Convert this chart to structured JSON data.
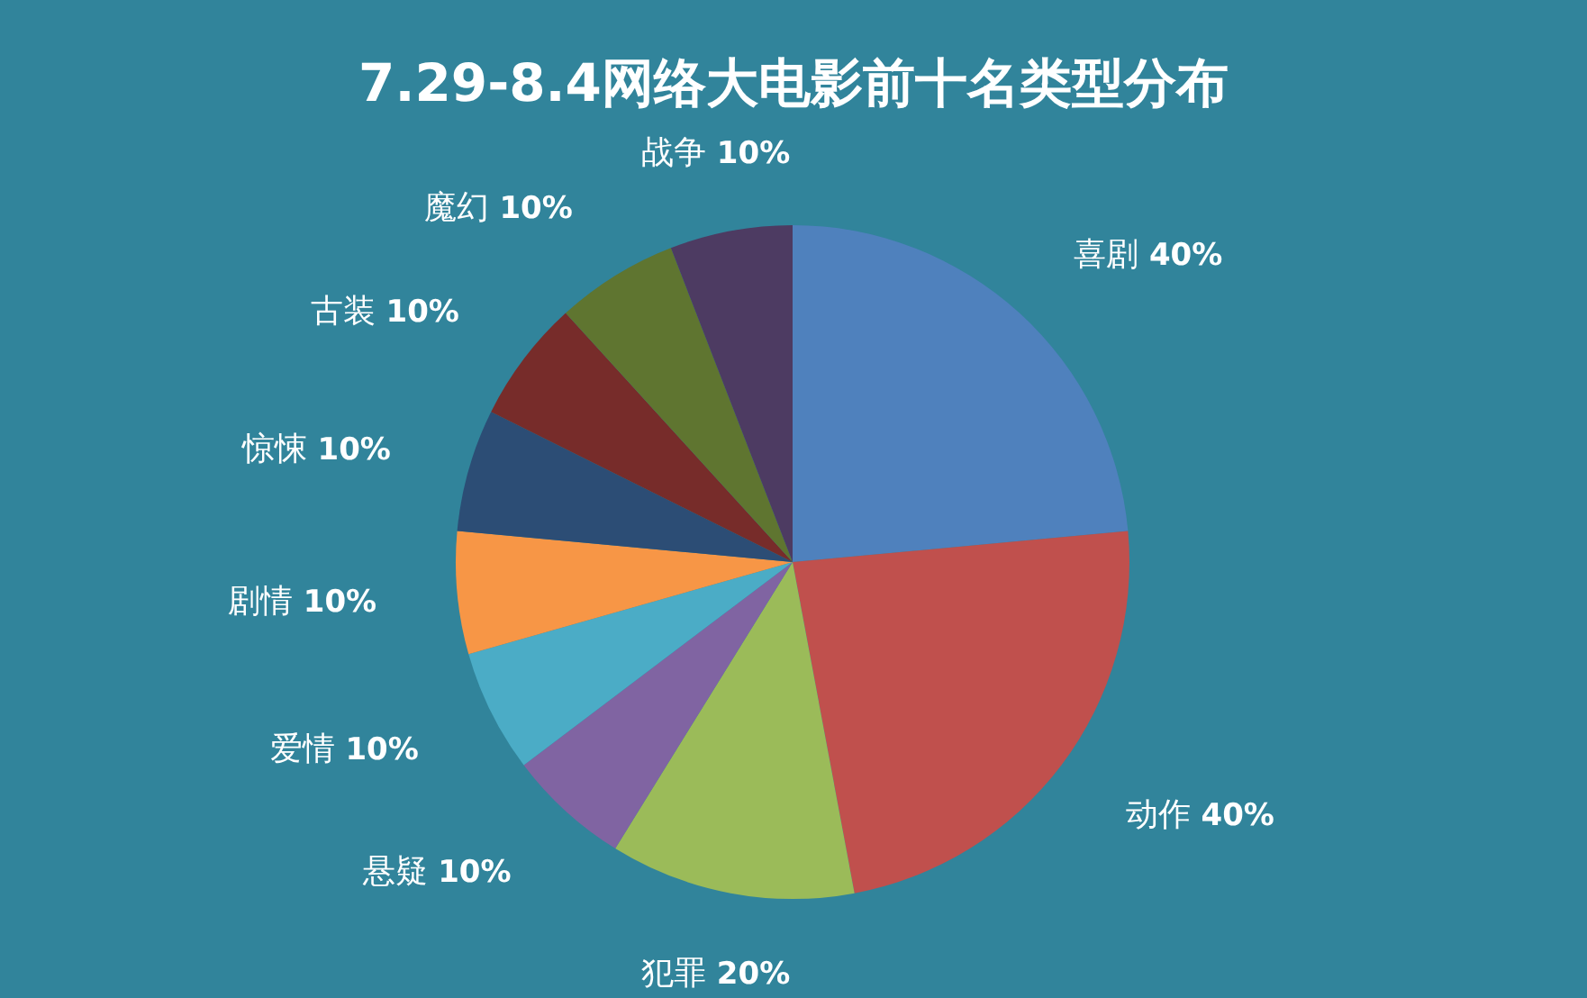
{
  "chart_data": {
    "type": "pie",
    "title": "7.29-8.4网络大电影前十名类型分布",
    "categories": [
      "喜剧",
      "动作",
      "犯罪",
      "悬疑",
      "爱情",
      "剧情",
      "惊悚",
      "古装",
      "魔幻",
      "战争"
    ],
    "values": [
      40,
      40,
      20,
      10,
      10,
      10,
      10,
      10,
      10,
      10
    ],
    "value_labels": [
      "40%",
      "40%",
      "20%",
      "10%",
      "10%",
      "10%",
      "10%",
      "10%",
      "10%",
      "10%"
    ],
    "colors": [
      "#4f81bd",
      "#c0504d",
      "#9bbb59",
      "#8064a2",
      "#4bacc6",
      "#f79646",
      "#2c4d75",
      "#772c2a",
      "#5f7530",
      "#4d3b62"
    ]
  }
}
